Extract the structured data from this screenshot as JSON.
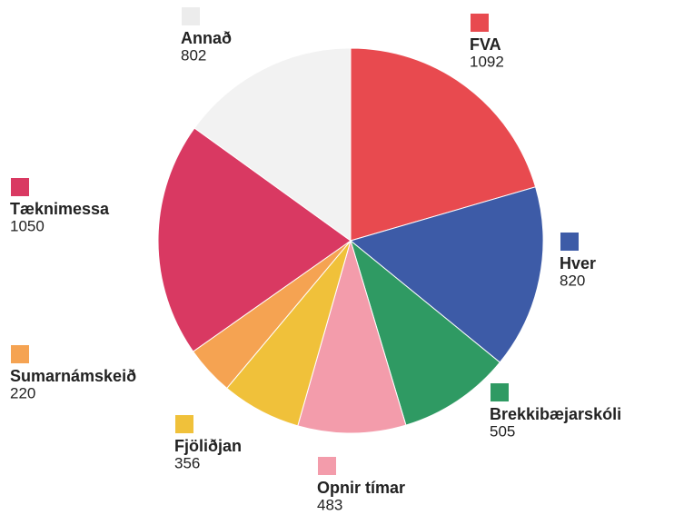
{
  "chart_data": {
    "type": "pie",
    "categories": [
      "FVA",
      "Hver",
      "Brekkibæjarskóli",
      "Opnir tímar",
      "Fjöliðjan",
      "Sumarnámskeið",
      "Tæknimessa",
      "Annað"
    ],
    "values": [
      1092,
      820,
      505,
      483,
      356,
      220,
      1050,
      802
    ],
    "colors": [
      "#e84a4f",
      "#3d5ba7",
      "#2f9a63",
      "#f39cab",
      "#f0c13a",
      "#f5a352",
      "#d93962",
      "#f2f2f2"
    ]
  }
}
